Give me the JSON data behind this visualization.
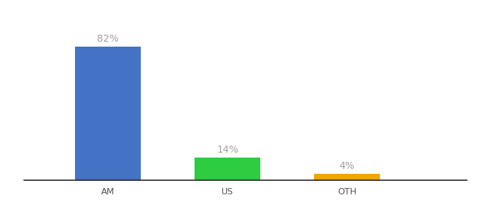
{
  "categories": [
    "AM",
    "US",
    "OTH"
  ],
  "values": [
    82,
    14,
    4
  ],
  "bar_colors": [
    "#4472c4",
    "#2ecc40",
    "#f0a500"
  ],
  "label_texts": [
    "82%",
    "14%",
    "4%"
  ],
  "label_color": "#a0a0a0",
  "background_color": "#ffffff",
  "ylim": [
    0,
    100
  ],
  "bar_width": 0.55,
  "label_fontsize": 10,
  "tick_fontsize": 9,
  "axis_line_color": "#222222",
  "x_positions": [
    1,
    2,
    3
  ],
  "xlim": [
    0.3,
    4.0
  ]
}
